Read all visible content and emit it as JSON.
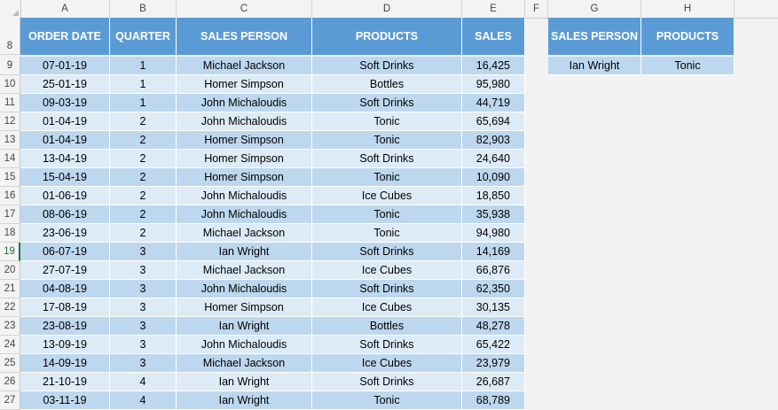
{
  "columns": [
    "A",
    "B",
    "C",
    "D",
    "E",
    "F",
    "G",
    "H"
  ],
  "header_row_number": "8",
  "main_table": {
    "headers": [
      "ORDER DATE",
      "QUARTER",
      "SALES PERSON",
      "PRODUCTS",
      "SALES"
    ],
    "rows": [
      {
        "row": "9",
        "date": "07-01-19",
        "quarter": "1",
        "person": "Michael Jackson",
        "product": "Soft Drinks",
        "sales": "16,425"
      },
      {
        "row": "10",
        "date": "25-01-19",
        "quarter": "1",
        "person": "Homer Simpson",
        "product": "Bottles",
        "sales": "95,980"
      },
      {
        "row": "11",
        "date": "09-03-19",
        "quarter": "1",
        "person": "John Michaloudis",
        "product": "Soft Drinks",
        "sales": "44,719"
      },
      {
        "row": "12",
        "date": "01-04-19",
        "quarter": "2",
        "person": "John Michaloudis",
        "product": "Tonic",
        "sales": "65,694"
      },
      {
        "row": "13",
        "date": "01-04-19",
        "quarter": "2",
        "person": "Homer Simpson",
        "product": "Tonic",
        "sales": "82,903"
      },
      {
        "row": "14",
        "date": "13-04-19",
        "quarter": "2",
        "person": "Homer Simpson",
        "product": "Soft Drinks",
        "sales": "24,640"
      },
      {
        "row": "15",
        "date": "15-04-19",
        "quarter": "2",
        "person": "Homer Simpson",
        "product": "Tonic",
        "sales": "10,090"
      },
      {
        "row": "16",
        "date": "01-06-19",
        "quarter": "2",
        "person": "John Michaloudis",
        "product": "Ice Cubes",
        "sales": "18,850"
      },
      {
        "row": "17",
        "date": "08-06-19",
        "quarter": "2",
        "person": "John Michaloudis",
        "product": "Tonic",
        "sales": "35,938"
      },
      {
        "row": "18",
        "date": "23-06-19",
        "quarter": "2",
        "person": "Michael Jackson",
        "product": "Tonic",
        "sales": "94,980"
      },
      {
        "row": "19",
        "date": "06-07-19",
        "quarter": "3",
        "person": "Ian Wright",
        "product": "Soft Drinks",
        "sales": "14,169"
      },
      {
        "row": "20",
        "date": "27-07-19",
        "quarter": "3",
        "person": "Michael Jackson",
        "product": "Ice Cubes",
        "sales": "66,876"
      },
      {
        "row": "21",
        "date": "04-08-19",
        "quarter": "3",
        "person": "John Michaloudis",
        "product": "Soft Drinks",
        "sales": "62,350"
      },
      {
        "row": "22",
        "date": "17-08-19",
        "quarter": "3",
        "person": "Homer Simpson",
        "product": "Ice Cubes",
        "sales": "30,135"
      },
      {
        "row": "23",
        "date": "23-08-19",
        "quarter": "3",
        "person": "Ian Wright",
        "product": "Bottles",
        "sales": "48,278"
      },
      {
        "row": "24",
        "date": "13-09-19",
        "quarter": "3",
        "person": "John Michaloudis",
        "product": "Soft Drinks",
        "sales": "65,422"
      },
      {
        "row": "25",
        "date": "14-09-19",
        "quarter": "3",
        "person": "Michael Jackson",
        "product": "Ice Cubes",
        "sales": "23,979"
      },
      {
        "row": "26",
        "date": "21-10-19",
        "quarter": "4",
        "person": "Ian Wright",
        "product": "Soft Drinks",
        "sales": "26,687"
      },
      {
        "row": "27",
        "date": "03-11-19",
        "quarter": "4",
        "person": "Ian Wright",
        "product": "Tonic",
        "sales": "68,789"
      }
    ]
  },
  "criteria_table": {
    "headers": [
      "SALES PERSON",
      "PRODUCTS"
    ],
    "values": [
      "Ian Wright",
      "Tonic"
    ]
  },
  "active_row": "19",
  "colors": {
    "header_fill": "#5b9bd5",
    "band_dark": "#bdd7ee",
    "band_light": "#ddebf7",
    "excel_green": "#217346"
  }
}
